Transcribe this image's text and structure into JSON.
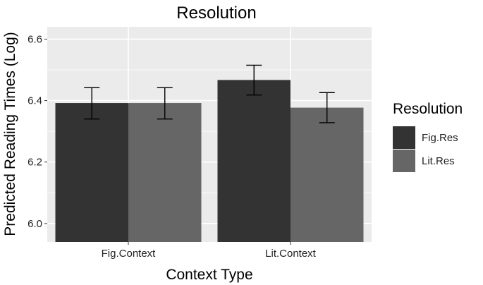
{
  "chart_data": {
    "type": "bar",
    "title": "Resolution",
    "xlabel": "Context Type",
    "ylabel": "Predicted Reading Times (Log)",
    "categories": [
      "Fig.Context",
      "Lit.Context"
    ],
    "series": [
      {
        "name": "Fig.Res",
        "color": "#333333",
        "values": [
          6.392,
          6.467
        ],
        "error_low": [
          6.34,
          6.418
        ],
        "error_high": [
          6.442,
          6.515
        ]
      },
      {
        "name": "Lit.Res",
        "color": "#666666",
        "values": [
          6.392,
          6.377
        ],
        "error_low": [
          6.34,
          6.328
        ],
        "error_high": [
          6.442,
          6.426
        ]
      }
    ],
    "ylim": [
      5.94,
      6.64
    ],
    "yticks": [
      6.0,
      6.2,
      6.4,
      6.6
    ],
    "ytick_labels": [
      "6.0",
      "6.2",
      "6.4",
      "6.6"
    ],
    "grid": true,
    "panel_background": "#ebebeb",
    "legend": {
      "title": "Resolution",
      "position": "right"
    }
  }
}
